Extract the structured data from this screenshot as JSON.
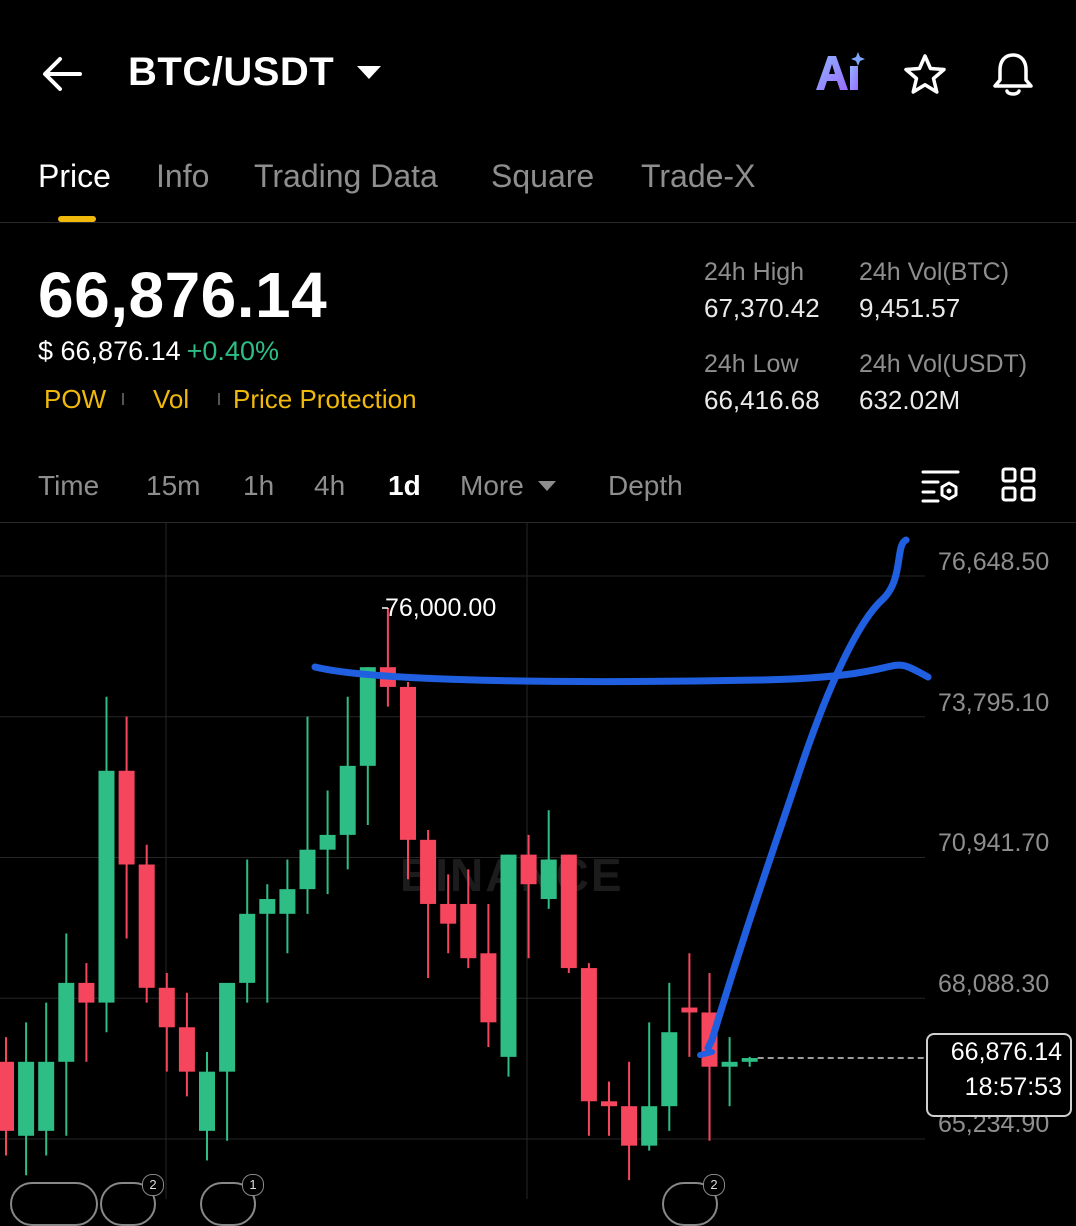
{
  "header": {
    "pair": "BTC/USDT",
    "ai_label": "Ai"
  },
  "tabs": [
    {
      "label": "Price",
      "active": true
    },
    {
      "label": "Info"
    },
    {
      "label": "Trading Data"
    },
    {
      "label": "Square"
    },
    {
      "label": "Trade-X"
    }
  ],
  "ticker": {
    "last_price": "66,876.14",
    "fiat_price": "$ 66,876.14",
    "change_pct": "+0.40%",
    "tags": [
      "POW",
      "Vol",
      "Price Protection"
    ],
    "high_label": "24h High",
    "high_value": "67,370.42",
    "vol_btc_label": "24h Vol(BTC)",
    "vol_btc_value": "9,451.57",
    "low_label": "24h Low",
    "low_value": "66,416.68",
    "vol_usdt_label": "24h Vol(USDT)",
    "vol_usdt_value": "632.02M"
  },
  "intervals": {
    "items": [
      "Time",
      "15m",
      "1h",
      "4h",
      "1d",
      "More",
      "Depth"
    ],
    "active": "1d"
  },
  "chart": {
    "axis_labels": [
      "76,648.50",
      "73,795.10",
      "70,941.70",
      "68,088.30",
      "65,234.90"
    ],
    "high_marker": "76,000.00",
    "current_price": "66,876.14",
    "countdown": "18:57:53",
    "watermark": "BINANCE",
    "badges": [
      "2",
      "1",
      "2"
    ]
  },
  "chart_data": {
    "type": "candlestick",
    "interval": "1d",
    "ylim": [
      64200,
      77100
    ],
    "y_ticks": [
      76648.5,
      73795.1,
      70941.7,
      68088.3,
      65234.9
    ],
    "candles": [
      {
        "o": 66800,
        "h": 67300,
        "l": 64900,
        "c": 65400
      },
      {
        "o": 65300,
        "h": 67600,
        "l": 64500,
        "c": 66800
      },
      {
        "o": 65400,
        "h": 68000,
        "l": 64900,
        "c": 66800
      },
      {
        "o": 66800,
        "h": 69400,
        "l": 65300,
        "c": 68400
      },
      {
        "o": 68400,
        "h": 68800,
        "l": 66800,
        "c": 68000
      },
      {
        "o": 68000,
        "h": 74200,
        "l": 67400,
        "c": 72700
      },
      {
        "o": 72700,
        "h": 73800,
        "l": 69300,
        "c": 70800
      },
      {
        "o": 70800,
        "h": 71200,
        "l": 68000,
        "c": 68300
      },
      {
        "o": 68300,
        "h": 68600,
        "l": 66600,
        "c": 67500
      },
      {
        "o": 67500,
        "h": 68200,
        "l": 66100,
        "c": 66600
      },
      {
        "o": 65400,
        "h": 67000,
        "l": 64800,
        "c": 66600
      },
      {
        "o": 66600,
        "h": 68300,
        "l": 65200,
        "c": 68400
      },
      {
        "o": 68400,
        "h": 70900,
        "l": 68000,
        "c": 69800
      },
      {
        "o": 69800,
        "h": 70400,
        "l": 68000,
        "c": 70100
      },
      {
        "o": 69800,
        "h": 70900,
        "l": 69000,
        "c": 70300
      },
      {
        "o": 70300,
        "h": 73800,
        "l": 69800,
        "c": 71100
      },
      {
        "o": 71100,
        "h": 72300,
        "l": 70200,
        "c": 71400
      },
      {
        "o": 71400,
        "h": 74200,
        "l": 70700,
        "c": 72800
      },
      {
        "o": 72800,
        "h": 74800,
        "l": 71600,
        "c": 74800
      },
      {
        "o": 74800,
        "h": 76000,
        "l": 74000,
        "c": 74400
      },
      {
        "o": 74400,
        "h": 74500,
        "l": 70500,
        "c": 71300
      },
      {
        "o": 71300,
        "h": 71500,
        "l": 68500,
        "c": 70000
      },
      {
        "o": 70000,
        "h": 70600,
        "l": 69000,
        "c": 69600
      },
      {
        "o": 70000,
        "h": 70700,
        "l": 68700,
        "c": 68900
      },
      {
        "o": 69000,
        "h": 70000,
        "l": 67100,
        "c": 67600
      },
      {
        "o": 66900,
        "h": 71000,
        "l": 66500,
        "c": 71000
      },
      {
        "o": 71000,
        "h": 71400,
        "l": 68900,
        "c": 70400
      },
      {
        "o": 70100,
        "h": 71900,
        "l": 69900,
        "c": 70900
      },
      {
        "o": 71000,
        "h": 71000,
        "l": 68600,
        "c": 68700
      },
      {
        "o": 68700,
        "h": 68800,
        "l": 65300,
        "c": 66000
      },
      {
        "o": 66000,
        "h": 66400,
        "l": 65300,
        "c": 65900
      },
      {
        "o": 65900,
        "h": 66800,
        "l": 64400,
        "c": 65100
      },
      {
        "o": 65100,
        "h": 67600,
        "l": 65000,
        "c": 65900
      },
      {
        "o": 65900,
        "h": 68400,
        "l": 65400,
        "c": 67400
      },
      {
        "o": 67900,
        "h": 69000,
        "l": 66900,
        "c": 67800
      },
      {
        "o": 67800,
        "h": 68600,
        "l": 65200,
        "c": 66700
      },
      {
        "o": 66700,
        "h": 67300,
        "l": 65900,
        "c": 66800
      },
      {
        "o": 66800,
        "h": 66900,
        "l": 66700,
        "c": 66876.14
      }
    ]
  }
}
